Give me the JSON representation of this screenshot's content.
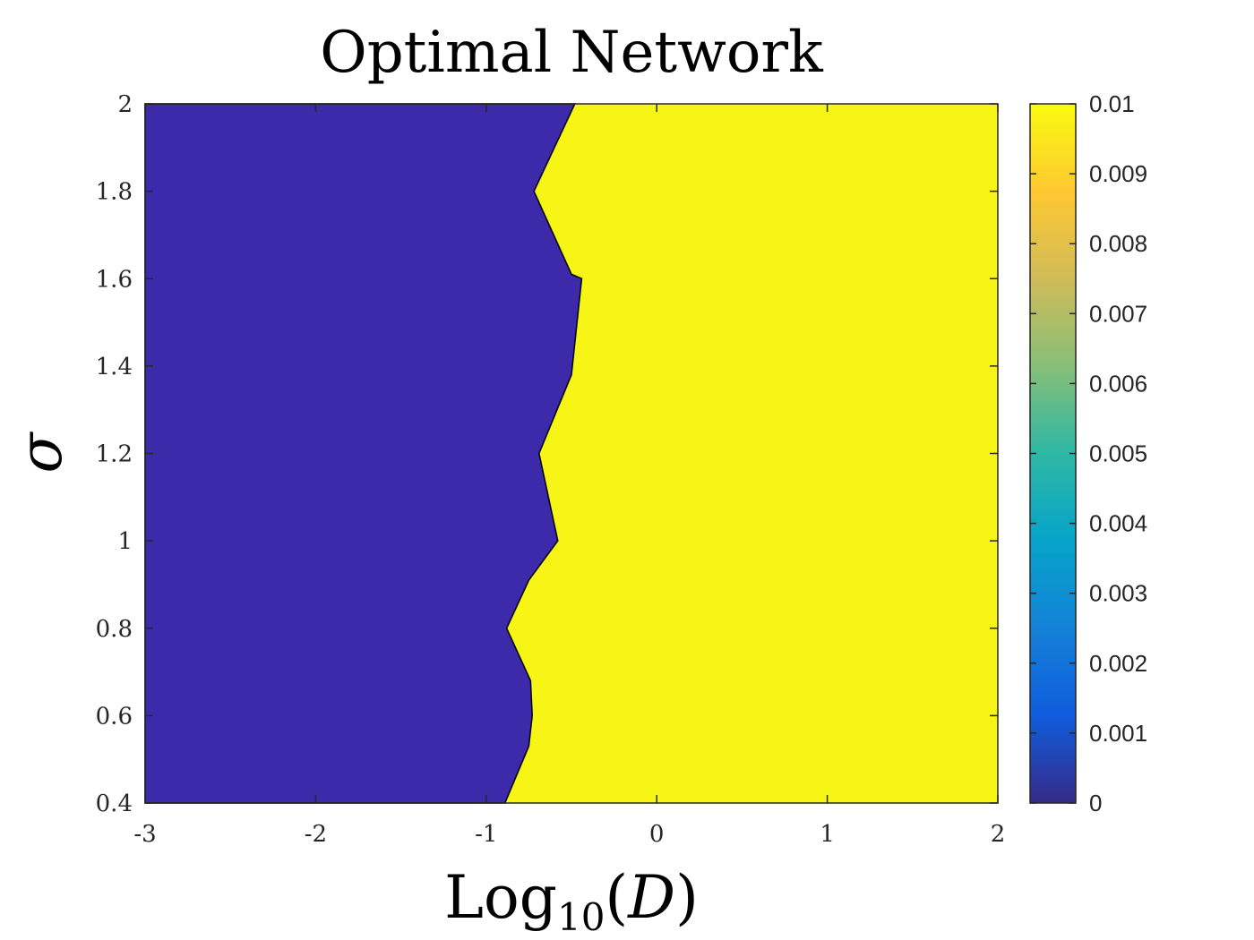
{
  "chart_data": {
    "type": "contourf",
    "title": "Optimal Network",
    "xlabel": "Log10(D)",
    "ylabel": "σ",
    "xlim": [
      -3,
      2
    ],
    "ylim": [
      0.4,
      2
    ],
    "x_ticks": [
      "-3",
      "-2",
      "-1",
      "0",
      "1",
      "2"
    ],
    "y_ticks": [
      "0.4",
      "0.6",
      "0.8",
      "1",
      "1.2",
      "1.4",
      "1.6",
      "1.8",
      "2"
    ],
    "regions": [
      {
        "value": 0,
        "color": "#3d2aab",
        "side": "left",
        "boundary": [
          [
            -0.89,
            0.4
          ],
          [
            -0.75,
            0.53
          ],
          [
            -0.73,
            0.6
          ],
          [
            -0.74,
            0.68
          ],
          [
            -0.88,
            0.8
          ],
          [
            -0.75,
            0.91
          ],
          [
            -0.58,
            1.0
          ],
          [
            -0.69,
            1.2
          ],
          [
            -0.5,
            1.38
          ],
          [
            -0.44,
            1.6
          ],
          [
            -0.5,
            1.61
          ],
          [
            -0.72,
            1.8
          ],
          [
            -0.48,
            2.0
          ]
        ]
      },
      {
        "value": 0.01,
        "color": "#f6f516",
        "side": "right"
      }
    ],
    "colorbar": {
      "ticks": [
        "0",
        "0.001",
        "0.002",
        "0.003",
        "0.004",
        "0.005",
        "0.006",
        "0.007",
        "0.008",
        "0.009",
        "0.01"
      ],
      "range": [
        0,
        0.01
      ],
      "colormap": "parula",
      "stops": [
        "#352a87",
        "#0f5cdd",
        "#1481d6",
        "#06a4ca",
        "#2eb7a4",
        "#87bf77",
        "#d1bb59",
        "#fec832",
        "#f9fb0e"
      ]
    },
    "grid": false
  }
}
